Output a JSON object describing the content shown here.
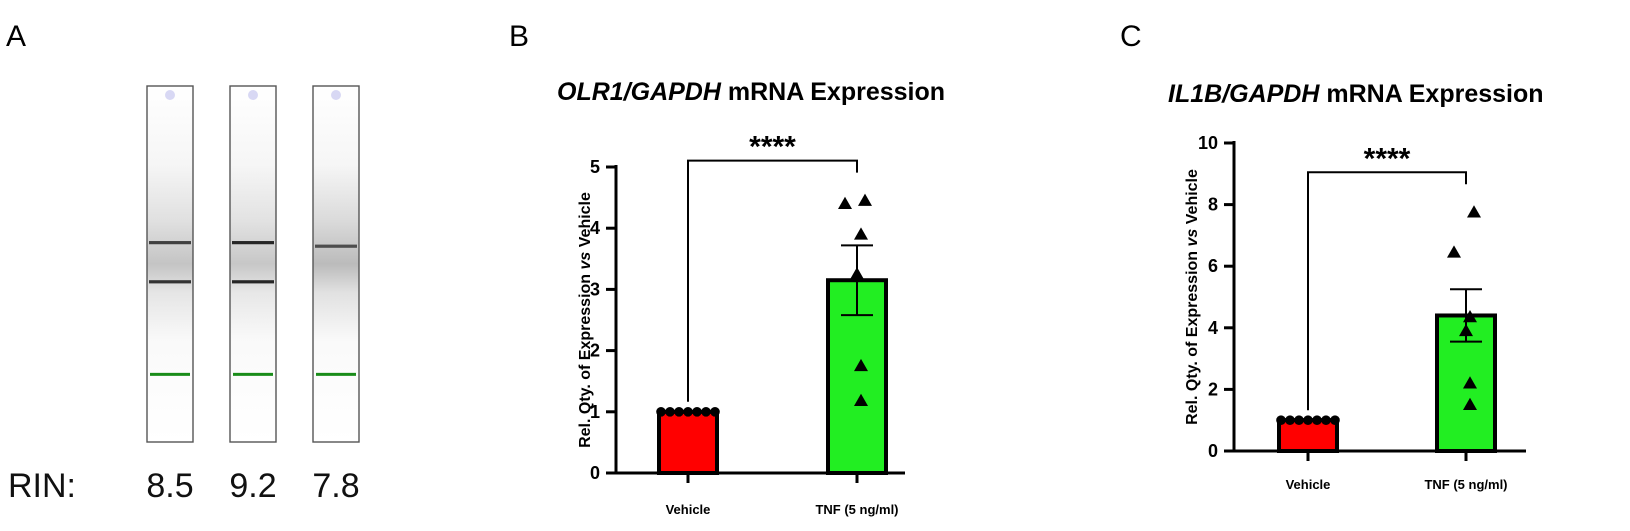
{
  "panel_a": {
    "letter": "A",
    "rin_label": "RIN:",
    "lanes": [
      {
        "rin": "8.5",
        "bands": [
          {
            "pos": 0.44,
            "darkness": 0.75
          },
          {
            "pos": 0.55,
            "darkness": 0.8
          }
        ],
        "haze": 0.3
      },
      {
        "rin": "9.2",
        "bands": [
          {
            "pos": 0.44,
            "darkness": 0.85
          },
          {
            "pos": 0.55,
            "darkness": 0.85
          }
        ],
        "haze": 0.25
      },
      {
        "rin": "7.8",
        "bands": [
          {
            "pos": 0.45,
            "darkness": 0.7
          }
        ],
        "haze": 0.45
      }
    ],
    "marker_color": "#1a8c1a",
    "well_color": "#d8d8f4"
  },
  "chart_data": [
    {
      "panel_letter": "B",
      "type": "bar",
      "title_italic": "OLR1/GAPDH",
      "title_rest": " mRNA Expression",
      "ylabel_parts": [
        "Rel. Qty. of Expression ",
        "vs",
        " Vehicle"
      ],
      "ylim": [
        0,
        5
      ],
      "yticks": [
        0,
        1,
        2,
        3,
        4,
        5
      ],
      "ytick_labels": [
        "0",
        "1",
        "2",
        "3",
        "4",
        "5"
      ],
      "categories": [
        "Vehicle",
        "TNF (5 ng/ml)"
      ],
      "values": [
        1.0,
        3.15
      ],
      "sem": [
        0.0,
        0.57
      ],
      "colors": [
        "#ff0000",
        "#22ee22"
      ],
      "points": [
        [
          1,
          1,
          1,
          1,
          1,
          1,
          1
        ],
        [
          4.45,
          4.4,
          3.9,
          3.25,
          1.75,
          1.18
        ]
      ],
      "significance": "****"
    },
    {
      "panel_letter": "C",
      "type": "bar",
      "title_italic": "IL1B/GAPDH",
      "title_rest": " mRNA Expression",
      "ylabel_parts": [
        "Rel. Qty. of Expression ",
        "vs",
        " Vehicle"
      ],
      "ylim": [
        0,
        10
      ],
      "yticks": [
        0,
        2,
        4,
        6,
        8,
        10
      ],
      "ytick_labels": [
        "0",
        "2",
        "4",
        "6",
        "8",
        "10"
      ],
      "categories": [
        "Vehicle",
        "TNF (5 ng/ml)"
      ],
      "values": [
        1.0,
        4.4
      ],
      "sem": [
        0.0,
        0.85
      ],
      "colors": [
        "#ff0000",
        "#22ee22"
      ],
      "points": [
        [
          1,
          1,
          1,
          1,
          1,
          1,
          1
        ],
        [
          7.75,
          6.45,
          4.35,
          3.9,
          2.2,
          1.5
        ]
      ],
      "significance": "****"
    }
  ]
}
